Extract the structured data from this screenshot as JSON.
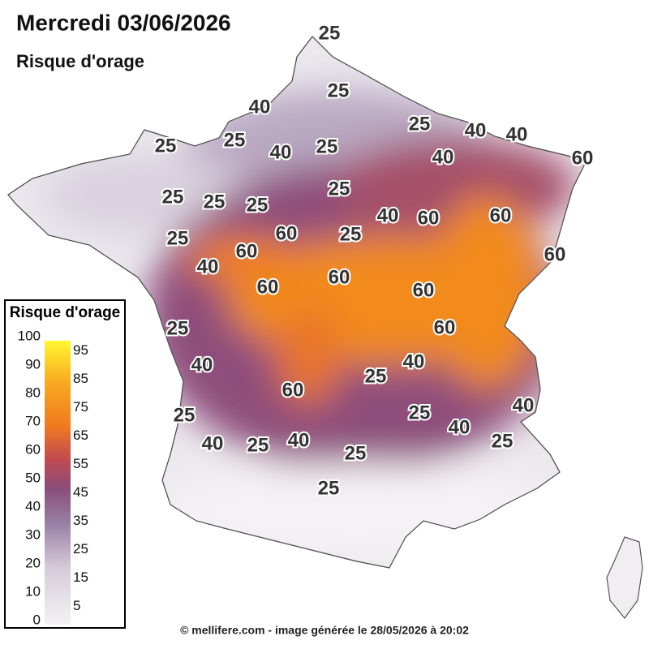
{
  "header": {
    "title": "Mercredi 03/06/2026",
    "subtitle": "Risque d'orage"
  },
  "contour_labels": [
    25,
    25,
    40,
    25,
    40,
    40,
    25,
    25,
    40,
    25,
    40,
    60,
    25,
    25,
    25,
    25,
    40,
    60,
    60,
    60,
    25,
    25,
    60,
    40,
    60,
    60,
    60,
    60,
    60,
    25,
    40,
    40,
    25,
    60,
    40,
    25,
    25,
    40,
    40,
    25,
    40,
    25,
    25,
    25
  ],
  "legend": {
    "title": "Risque d'orage",
    "scale_labels": [
      100,
      90,
      80,
      70,
      60,
      50,
      40,
      30,
      20,
      10,
      0
    ],
    "band_labels": [
      95,
      85,
      75,
      65,
      55,
      45,
      35,
      25,
      15,
      5
    ]
  },
  "footer": "© mellifere.com - image générée le 28/05/2026 à 20:02"
}
